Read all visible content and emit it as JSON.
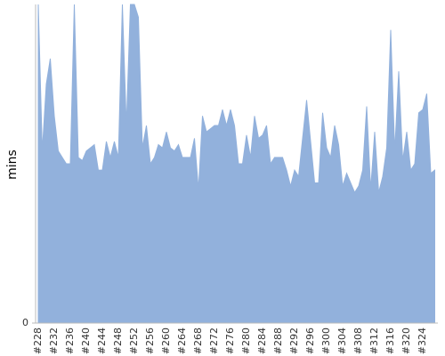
{
  "chart_data": {
    "type": "area",
    "y_label": "mins",
    "categories": [
      "#228",
      null,
      null,
      null,
      "#232",
      null,
      null,
      null,
      "#236",
      null,
      null,
      null,
      "#240",
      null,
      null,
      null,
      "#244",
      null,
      null,
      null,
      "#248",
      null,
      null,
      null,
      "#252",
      null,
      null,
      null,
      "#256",
      null,
      null,
      null,
      "#260",
      null,
      null,
      null,
      "#264",
      null,
      null,
      null,
      "#268",
      null,
      null,
      null,
      "#272",
      null,
      null,
      null,
      "#276",
      null,
      null,
      null,
      "#280",
      null,
      null,
      null,
      "#284",
      null,
      null,
      null,
      "#288",
      null,
      null,
      null,
      "#292",
      null,
      null,
      null,
      "#296",
      null,
      null,
      null,
      "#300",
      null,
      null,
      null,
      "#304",
      null,
      null,
      null,
      "#308",
      null,
      null,
      null,
      "#312",
      null,
      null,
      null,
      "#316",
      null,
      null,
      null,
      "#320",
      null,
      null,
      null,
      "#324",
      null,
      null,
      null
    ],
    "values": [
      100,
      54,
      75,
      83,
      65,
      54,
      52,
      50,
      50,
      100,
      52,
      51,
      54,
      55,
      56,
      48,
      48,
      57,
      52,
      57,
      52,
      100,
      62,
      100,
      100,
      96,
      55,
      62,
      50,
      52,
      56,
      55,
      60,
      55,
      54,
      56,
      52,
      52,
      52,
      58,
      42,
      65,
      60,
      61,
      62,
      62,
      67,
      62,
      67,
      62,
      50,
      50,
      59,
      52,
      65,
      58,
      59,
      62,
      50,
      52,
      52,
      52,
      48,
      43,
      48,
      46,
      58,
      70,
      57,
      44,
      44,
      66,
      55,
      52,
      62,
      56,
      43,
      47,
      44,
      41,
      43,
      48,
      68,
      42,
      60,
      41,
      46,
      55,
      92,
      54,
      79,
      51,
      60,
      48,
      50,
      66,
      67,
      72,
      47,
      48
    ],
    "color": "#92b1dc",
    "ylim": [
      0,
      100
    ],
    "yticks": [
      0
    ]
  }
}
